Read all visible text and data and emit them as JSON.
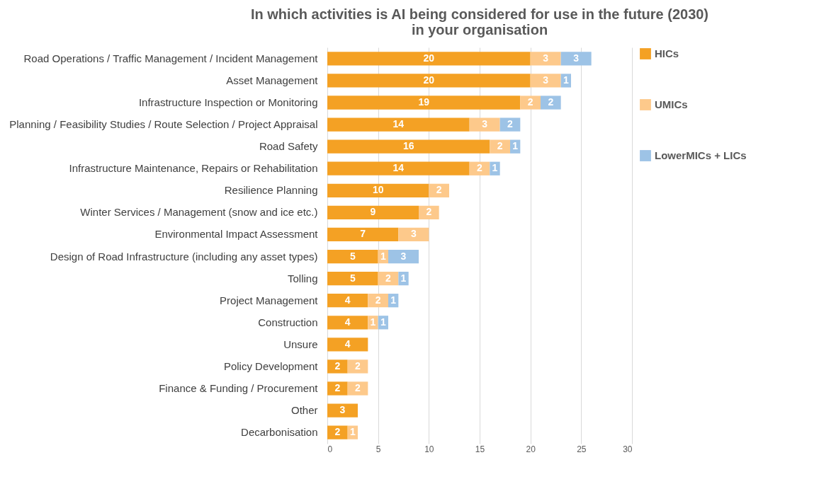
{
  "chart_data": {
    "type": "bar",
    "orientation": "horizontal",
    "stacked": true,
    "title": "In which activities is AI being considered for use in the future (2030) in your organisation",
    "categories": [
      "Road Operations / Traffic Management / Incident Management",
      "Asset Management",
      "Infrastructure Inspection or Monitoring",
      "Planning / Feasibility Studies / Route Selection / Project Appraisal",
      "Road Safety",
      "Infrastructure Maintenance, Repairs or Rehabilitation",
      "Resilience Planning",
      "Winter Services / Management (snow and ice etc.)",
      "Environmental Impact Assessment",
      "Design of Road Infrastructure (including any asset types)",
      "Tolling",
      "Project Management",
      "Construction",
      "Unsure",
      "Policy Development",
      "Finance & Funding / Procurement",
      "Other",
      "Decarbonisation"
    ],
    "series": [
      {
        "name": "HICs",
        "color": "#f4a124",
        "values": [
          20,
          20,
          19,
          14,
          16,
          14,
          10,
          9,
          7,
          5,
          5,
          4,
          4,
          4,
          2,
          2,
          3,
          2
        ]
      },
      {
        "name": "UMICs",
        "color": "#fdc98b",
        "values": [
          3,
          3,
          2,
          3,
          2,
          2,
          2,
          2,
          3,
          1,
          2,
          2,
          1,
          null,
          2,
          2,
          null,
          1
        ]
      },
      {
        "name": "LowerMICs + LICs",
        "color": "#9dc3e6",
        "values": [
          3,
          1,
          2,
          2,
          1,
          1,
          null,
          null,
          null,
          3,
          1,
          1,
          1,
          null,
          null,
          null,
          null,
          null
        ]
      }
    ],
    "xlim": [
      0,
      30
    ],
    "xticks": [
      0,
      5,
      10,
      15,
      20,
      25,
      30
    ],
    "grid": "x",
    "legend": "right",
    "data_labels": true
  }
}
